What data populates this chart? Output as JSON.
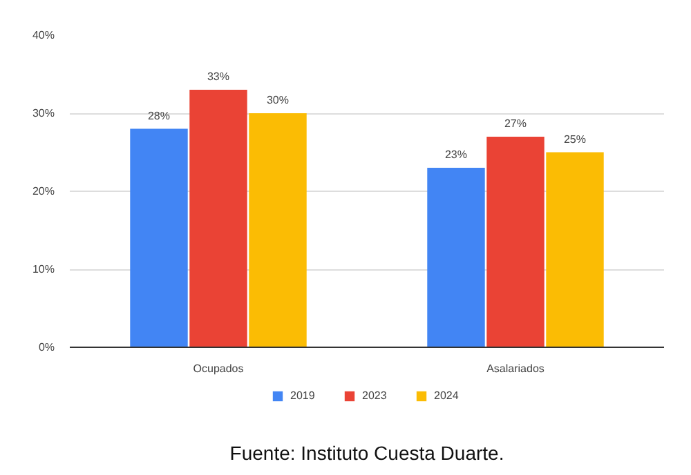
{
  "chart_data": {
    "type": "bar",
    "categories": [
      "Ocupados",
      "Asalariados"
    ],
    "series": [
      {
        "name": "2019",
        "color": "#4285f4",
        "values": [
          28,
          23
        ],
        "value_labels": [
          "28%",
          "23%"
        ]
      },
      {
        "name": "2023",
        "color": "#ea4335",
        "values": [
          33,
          27
        ],
        "value_labels": [
          "33%",
          "27%"
        ]
      },
      {
        "name": "2024",
        "color": "#fbbc04",
        "values": [
          30,
          25
        ],
        "value_labels": [
          "30%",
          "25%"
        ]
      }
    ],
    "ylim": [
      0,
      40
    ],
    "yticks": [
      {
        "value": 0,
        "label": "0%"
      },
      {
        "value": 10,
        "label": "10%"
      },
      {
        "value": 20,
        "label": "20%"
      },
      {
        "value": 30,
        "label": "30%"
      },
      {
        "value": 40,
        "label": "40%"
      }
    ],
    "grid": "y",
    "legend": "bottom",
    "annotations": [
      "Fuente: Instituto Cuesta Duarte."
    ]
  }
}
